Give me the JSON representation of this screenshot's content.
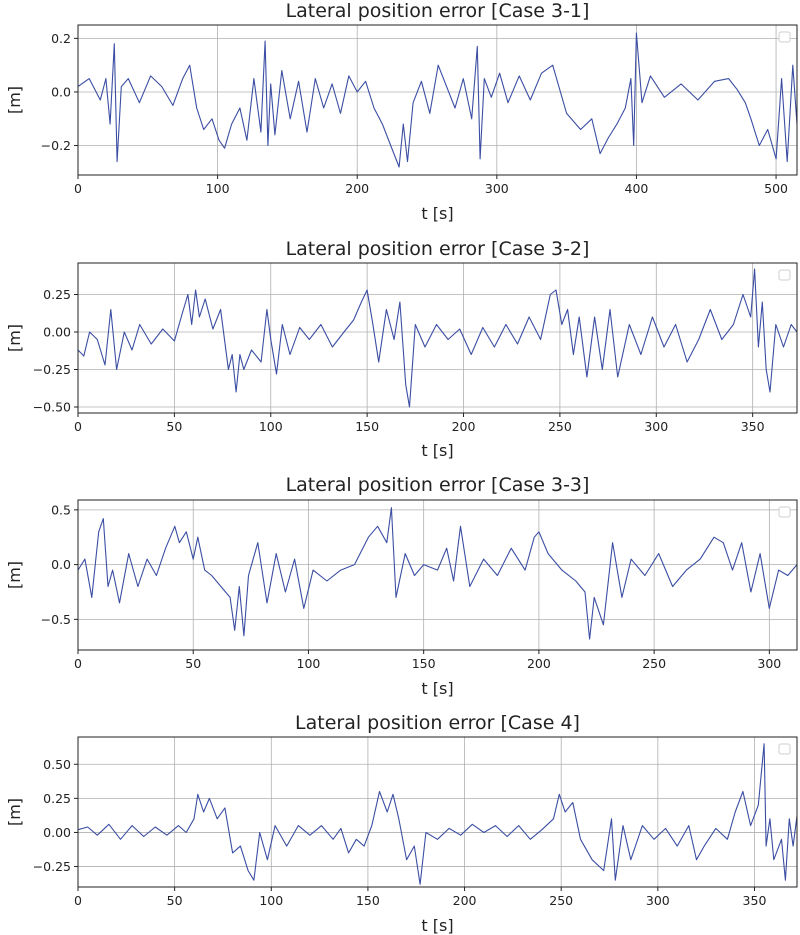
{
  "colors": {
    "series": "#3b4ea3",
    "grid": "#b0b0b0",
    "axis": "#222222"
  },
  "chart_data": [
    {
      "type": "line",
      "title": "Lateral position error [Case 3-1]",
      "xlabel": "t [s]",
      "ylabel": "[m]",
      "xlim": [
        0,
        515
      ],
      "ylim": [
        -0.31,
        0.25
      ],
      "xticks": [
        0,
        100,
        200,
        300,
        400,
        500
      ],
      "xtick_labels": [
        "0",
        "100",
        "200",
        "300",
        "400",
        "500"
      ],
      "yticks": [
        -0.2,
        0.0,
        0.2
      ],
      "ytick_labels": [
        "−0.2",
        "0.0",
        "0.2"
      ],
      "grid": true,
      "legend": "top-right (empty)",
      "series": [
        {
          "x": [
            0,
            8,
            16,
            20,
            23,
            26,
            28,
            31,
            36,
            44,
            52,
            60,
            68,
            75,
            80,
            85,
            90,
            96,
            101,
            105,
            110,
            116,
            121,
            126,
            131,
            134,
            136,
            138,
            141,
            146,
            152,
            158,
            164,
            170,
            176,
            182,
            188,
            194,
            200,
            206,
            212,
            218,
            224,
            230,
            233,
            236,
            240,
            246,
            252,
            258,
            264,
            270,
            276,
            282,
            286,
            288,
            291,
            296,
            302,
            308,
            316,
            324,
            332,
            340,
            350,
            360,
            368,
            374,
            380,
            386,
            392,
            396,
            398,
            400,
            404,
            410,
            420,
            432,
            444,
            456,
            466,
            472,
            478,
            482,
            488,
            494,
            500,
            504,
            508,
            512,
            515
          ],
          "y": [
            0.02,
            0.05,
            -0.03,
            0.05,
            -0.12,
            0.18,
            -0.26,
            0.02,
            0.05,
            -0.04,
            0.06,
            0.02,
            -0.05,
            0.05,
            0.1,
            -0.06,
            -0.14,
            -0.1,
            -0.18,
            -0.21,
            -0.12,
            -0.06,
            -0.18,
            0.05,
            -0.15,
            0.19,
            -0.2,
            0.03,
            -0.16,
            0.08,
            -0.1,
            0.04,
            -0.15,
            0.05,
            -0.06,
            0.03,
            -0.08,
            0.06,
            0.0,
            0.04,
            -0.06,
            -0.12,
            -0.2,
            -0.28,
            -0.12,
            -0.26,
            -0.04,
            0.04,
            -0.08,
            0.1,
            0.02,
            -0.06,
            0.05,
            -0.1,
            0.17,
            -0.25,
            0.05,
            -0.02,
            0.07,
            -0.04,
            0.06,
            -0.03,
            0.07,
            0.1,
            -0.08,
            -0.14,
            -0.1,
            -0.23,
            -0.17,
            -0.12,
            -0.06,
            0.05,
            -0.2,
            0.22,
            -0.04,
            0.06,
            -0.02,
            0.03,
            -0.03,
            0.04,
            0.05,
            0.01,
            -0.04,
            -0.1,
            -0.2,
            -0.14,
            -0.25,
            0.05,
            -0.26,
            0.1,
            -0.12
          ]
        }
      ]
    },
    {
      "type": "line",
      "title": "Lateral position error [Case 3-2]",
      "xlabel": "t [s]",
      "ylabel": "[m]",
      "xlim": [
        0,
        373
      ],
      "ylim": [
        -0.54,
        0.46
      ],
      "xticks": [
        0,
        50,
        100,
        150,
        200,
        250,
        300,
        350
      ],
      "xtick_labels": [
        "0",
        "50",
        "100",
        "150",
        "200",
        "250",
        "300",
        "350"
      ],
      "yticks": [
        -0.5,
        -0.25,
        0.0,
        0.25
      ],
      "ytick_labels": [
        "−0.50",
        "−0.25",
        "0.00",
        "0.25"
      ],
      "grid": true,
      "legend": "top-right (empty)",
      "series": [
        {
          "x": [
            0,
            3,
            6,
            10,
            14,
            17,
            20,
            24,
            28,
            32,
            38,
            44,
            50,
            54,
            57,
            59,
            61,
            63,
            66,
            70,
            74,
            78,
            80,
            82,
            84,
            86,
            90,
            95,
            98,
            100,
            103,
            106,
            110,
            115,
            120,
            126,
            132,
            138,
            143,
            147,
            150,
            153,
            156,
            160,
            164,
            167,
            170,
            172,
            175,
            180,
            186,
            192,
            198,
            204,
            210,
            216,
            222,
            228,
            234,
            240,
            245,
            248,
            251,
            254,
            257,
            260,
            264,
            268,
            272,
            276,
            280,
            286,
            292,
            298,
            304,
            310,
            316,
            322,
            328,
            334,
            340,
            345,
            349,
            351,
            353,
            355,
            357,
            359,
            362,
            366,
            370,
            373
          ],
          "y": [
            -0.12,
            -0.16,
            0.0,
            -0.05,
            -0.22,
            0.15,
            -0.25,
            0.0,
            -0.12,
            0.05,
            -0.08,
            0.02,
            -0.06,
            0.12,
            0.25,
            0.05,
            0.28,
            0.1,
            0.22,
            0.02,
            0.15,
            -0.25,
            -0.15,
            -0.4,
            -0.15,
            -0.25,
            -0.12,
            -0.2,
            0.15,
            -0.05,
            -0.28,
            0.05,
            -0.15,
            0.03,
            -0.05,
            0.05,
            -0.1,
            0.0,
            0.08,
            0.2,
            0.28,
            0.05,
            -0.2,
            0.15,
            -0.05,
            0.2,
            -0.35,
            -0.5,
            0.05,
            -0.1,
            0.05,
            -0.05,
            0.02,
            -0.15,
            0.03,
            -0.1,
            0.05,
            -0.08,
            0.1,
            -0.05,
            0.25,
            0.28,
            0.05,
            0.15,
            -0.15,
            0.1,
            -0.3,
            0.1,
            -0.25,
            0.15,
            -0.3,
            0.05,
            -0.15,
            0.1,
            -0.1,
            0.05,
            -0.2,
            -0.05,
            0.15,
            -0.05,
            0.05,
            0.25,
            0.1,
            0.42,
            -0.1,
            0.2,
            -0.25,
            -0.4,
            0.05,
            -0.1,
            0.05,
            0.0
          ]
        }
      ]
    },
    {
      "type": "line",
      "title": "Lateral position error [Case 3-3]",
      "xlabel": "t [s]",
      "ylabel": "[m]",
      "xlim": [
        0,
        312
      ],
      "ylim": [
        -0.78,
        0.59
      ],
      "xticks": [
        0,
        50,
        100,
        150,
        200,
        250,
        300
      ],
      "xtick_labels": [
        "0",
        "50",
        "100",
        "150",
        "200",
        "250",
        "300"
      ],
      "yticks": [
        -0.5,
        0.0,
        0.5
      ],
      "ytick_labels": [
        "−0.5",
        "0.0",
        "0.5"
      ],
      "grid": true,
      "legend": "top-right (empty)",
      "series": [
        {
          "x": [
            0,
            3,
            6,
            9,
            11,
            13,
            15,
            18,
            22,
            26,
            30,
            34,
            38,
            42,
            44,
            47,
            50,
            52,
            55,
            58,
            62,
            66,
            68,
            70,
            72,
            74,
            78,
            82,
            86,
            90,
            94,
            98,
            102,
            108,
            114,
            120,
            126,
            130,
            134,
            136,
            138,
            142,
            146,
            150,
            156,
            160,
            163,
            166,
            170,
            176,
            182,
            188,
            194,
            198,
            200,
            204,
            210,
            216,
            220,
            222,
            224,
            228,
            232,
            236,
            240,
            246,
            252,
            258,
            264,
            270,
            276,
            280,
            284,
            288,
            292,
            296,
            300,
            304,
            308,
            312
          ],
          "y": [
            -0.05,
            0.05,
            -0.3,
            0.3,
            0.42,
            -0.2,
            -0.05,
            -0.35,
            0.1,
            -0.2,
            0.05,
            -0.1,
            0.15,
            0.35,
            0.2,
            0.3,
            0.05,
            0.25,
            -0.05,
            -0.1,
            -0.2,
            -0.3,
            -0.6,
            -0.2,
            -0.65,
            -0.1,
            0.2,
            -0.35,
            0.1,
            -0.25,
            0.05,
            -0.4,
            -0.05,
            -0.15,
            -0.05,
            0.0,
            0.25,
            0.35,
            0.2,
            0.52,
            -0.3,
            0.1,
            -0.1,
            0.0,
            -0.05,
            0.15,
            -0.15,
            0.35,
            -0.2,
            0.05,
            -0.1,
            0.15,
            -0.05,
            0.25,
            0.3,
            0.1,
            -0.05,
            -0.15,
            -0.25,
            -0.68,
            -0.3,
            -0.55,
            0.2,
            -0.3,
            0.05,
            -0.1,
            0.1,
            -0.2,
            -0.05,
            0.05,
            0.25,
            0.2,
            -0.05,
            0.2,
            -0.25,
            0.1,
            -0.4,
            -0.05,
            -0.1,
            0.0
          ]
        }
      ]
    },
    {
      "type": "line",
      "title": "Lateral position error [Case 4]",
      "xlabel": "t [s]",
      "ylabel": "[m]",
      "xlim": [
        0,
        372
      ],
      "ylim": [
        -0.4,
        0.7
      ],
      "xticks": [
        0,
        50,
        100,
        150,
        200,
        250,
        300,
        350
      ],
      "xtick_labels": [
        "0",
        "50",
        "100",
        "150",
        "200",
        "250",
        "300",
        "350"
      ],
      "yticks": [
        -0.25,
        0.0,
        0.25,
        0.5
      ],
      "ytick_labels": [
        "−0.25",
        "0.00",
        "0.25",
        "0.50"
      ],
      "grid": true,
      "legend": "top-right (empty)",
      "series": [
        {
          "x": [
            0,
            5,
            10,
            16,
            22,
            28,
            34,
            40,
            46,
            52,
            56,
            60,
            62,
            65,
            68,
            72,
            76,
            80,
            84,
            88,
            91,
            94,
            98,
            102,
            108,
            114,
            120,
            126,
            132,
            136,
            140,
            144,
            148,
            152,
            156,
            160,
            163,
            166,
            170,
            174,
            177,
            180,
            186,
            192,
            198,
            204,
            210,
            216,
            222,
            228,
            234,
            240,
            246,
            249,
            252,
            256,
            260,
            266,
            272,
            276,
            278,
            282,
            286,
            292,
            298,
            304,
            310,
            316,
            320,
            324,
            330,
            336,
            340,
            344,
            348,
            352,
            355,
            356,
            358,
            360,
            364,
            366,
            368,
            370,
            372
          ],
          "y": [
            0.02,
            0.04,
            -0.02,
            0.06,
            -0.05,
            0.05,
            -0.03,
            0.04,
            -0.02,
            0.05,
            0.0,
            0.1,
            0.28,
            0.15,
            0.25,
            0.1,
            0.18,
            -0.15,
            -0.1,
            -0.28,
            -0.35,
            0.0,
            -0.2,
            0.05,
            -0.1,
            0.05,
            -0.02,
            0.05,
            -0.05,
            0.03,
            -0.15,
            -0.05,
            -0.1,
            0.05,
            0.3,
            0.15,
            0.28,
            0.1,
            -0.2,
            -0.1,
            -0.38,
            0.0,
            -0.05,
            0.03,
            -0.02,
            0.06,
            0.0,
            0.05,
            -0.03,
            0.05,
            -0.05,
            0.02,
            0.1,
            0.28,
            0.15,
            0.22,
            -0.05,
            -0.2,
            -0.28,
            0.1,
            -0.35,
            0.05,
            -0.2,
            0.05,
            -0.05,
            0.03,
            -0.1,
            0.05,
            -0.2,
            -0.1,
            0.03,
            -0.05,
            0.15,
            0.3,
            0.05,
            0.2,
            0.65,
            -0.1,
            0.1,
            -0.2,
            -0.05,
            -0.35,
            0.1,
            -0.1,
            0.12
          ]
        }
      ]
    }
  ]
}
